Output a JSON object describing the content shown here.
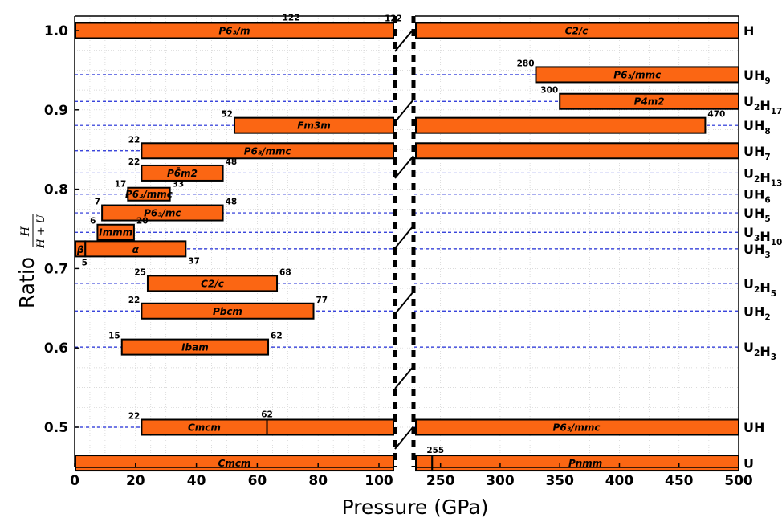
{
  "chart_data": {
    "type": "bar",
    "orientation": "horizontal",
    "xlabel": "Pressure (GPa)",
    "ylabel": "Ratio",
    "ylabel_fraction": {
      "numerator": "H",
      "denominator": "H + U"
    },
    "x_segments": [
      {
        "range": [
          0,
          105
        ],
        "ticks": [
          0,
          20,
          40,
          60,
          80,
          100
        ]
      },
      {
        "range": [
          228,
          500
        ],
        "ticks": [
          250,
          300,
          350,
          400,
          450,
          500
        ]
      }
    ],
    "ylim": [
      0.45,
      1.0
    ],
    "yticks": [
      "0.5",
      "0.6",
      "0.7",
      "0.8",
      "0.9",
      "1.0"
    ],
    "grid": true,
    "compositions": [
      {
        "y": 1.0,
        "base": "H",
        "sub": ""
      },
      {
        "y": 0.9444,
        "parts": [
          [
            "UH",
            "9"
          ]
        ]
      },
      {
        "y": 0.9107,
        "parts": [
          [
            "U",
            "2"
          ],
          [
            "H",
            "17"
          ]
        ]
      },
      {
        "y": 0.8804,
        "parts": [
          [
            "UH",
            "8"
          ]
        ]
      },
      {
        "y": 0.8484,
        "parts": [
          [
            "UH",
            "7"
          ]
        ]
      },
      {
        "y": 0.8204,
        "parts": [
          [
            "U",
            "2"
          ],
          [
            "H",
            "13"
          ]
        ]
      },
      {
        "y": 0.7938,
        "parts": [
          [
            "UH",
            "6"
          ]
        ]
      },
      {
        "y": 0.7702,
        "parts": [
          [
            "UH",
            "5"
          ]
        ]
      },
      {
        "y": 0.7457,
        "parts": [
          [
            "U",
            "3"
          ],
          [
            "H",
            "10"
          ]
        ]
      },
      {
        "y": 0.7248,
        "parts": [
          [
            "UH",
            "3"
          ]
        ]
      },
      {
        "y": 0.6813,
        "parts": [
          [
            "U",
            "2"
          ],
          [
            "H",
            "5"
          ]
        ]
      },
      {
        "y": 0.6465,
        "parts": [
          [
            "UH",
            "2"
          ]
        ]
      },
      {
        "y": 0.6011,
        "parts": [
          [
            "U",
            "2"
          ],
          [
            "H",
            "3"
          ]
        ]
      },
      {
        "y": 0.5,
        "parts": [
          [
            "UH",
            ""
          ]
        ]
      },
      {
        "y": 0.4549,
        "parts": [
          [
            "U",
            ""
          ]
        ]
      }
    ],
    "phases": [
      {
        "y": 1.0,
        "start": 0,
        "end": 500,
        "label": "P6₃/m",
        "start_label": "",
        "end_label": "",
        "split_label": "122",
        "split": 122,
        "right_label": "C2/c",
        "comp": "H"
      },
      {
        "y": 0.9444,
        "start": 330,
        "end": 500,
        "label": "P6₃/mmc",
        "start_label": "280",
        "end_label": ""
      },
      {
        "y": 0.9107,
        "start": 350,
        "end": 500,
        "label": "P4̄m2",
        "start_label": "300",
        "end_label": ""
      },
      {
        "y": 0.8804,
        "start": 52.5,
        "end": 472,
        "label": "Fm3̄m",
        "start_label": "52",
        "end_label": "470"
      },
      {
        "y": 0.8484,
        "start": 22,
        "end": 500,
        "label": "P6₃/mmc",
        "start_label": "22",
        "end_label": ""
      },
      {
        "y": 0.8204,
        "start": 22,
        "end": 48.7,
        "label": "P6̄m2",
        "start_label": "22",
        "end_label": "48"
      },
      {
        "y": 0.7938,
        "start": 17.5,
        "end": 31.3,
        "label": "P6₃/mmc",
        "start_label": "17",
        "end_label": "33",
        "small": true
      },
      {
        "y": 0.7702,
        "start": 9,
        "end": 48.7,
        "label": "P6₃/mc",
        "start_label": "7",
        "end_label": "48"
      },
      {
        "y": 0.7457,
        "start": 7.5,
        "end": 19.5,
        "label": "Immm",
        "start_label": "6",
        "end_label": "20"
      },
      {
        "y": 0.7248,
        "start": 0,
        "end": 36.5,
        "split": 3.5,
        "left_label": "β",
        "label": "α",
        "split_label": "5",
        "end_label": "37",
        "greek": true
      },
      {
        "y": 0.6813,
        "start": 24,
        "end": 66.5,
        "label": "C2/c",
        "start_label": "25",
        "end_label": "68"
      },
      {
        "y": 0.6465,
        "start": 22,
        "end": 78.5,
        "label": "Pbcm",
        "start_label": "22",
        "end_label": "77"
      },
      {
        "y": 0.6011,
        "start": 15.5,
        "end": 63.6,
        "label": "Ibam",
        "start_label": "15",
        "end_label": "62"
      },
      {
        "y": 0.5,
        "start": 22,
        "end": 500,
        "split": 63.2,
        "label": "Cmcm",
        "start_label": "22",
        "split_label": "62",
        "right_label": "P6₃/mmc"
      },
      {
        "y": 0.4549,
        "start": 0,
        "end": 500,
        "split": 243,
        "label": "Cmcm",
        "split_label": "255",
        "right_label": "Pnmm"
      }
    ]
  }
}
